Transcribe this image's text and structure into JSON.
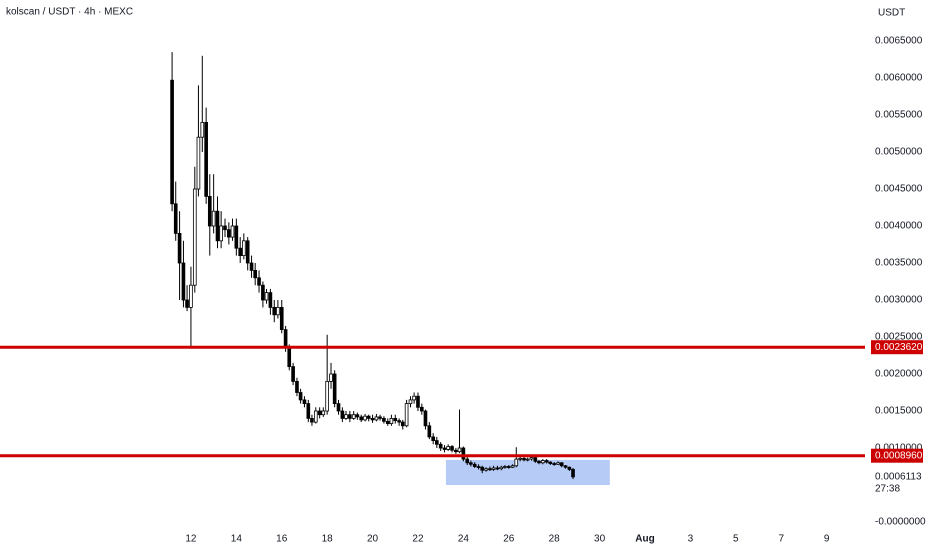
{
  "chart_data": {
    "type": "candlestick",
    "title": "kolscan / USDT · 4h · MEXC",
    "y_axis_label": "USDT",
    "xlim": [
      3.59,
      41.69
    ],
    "ylim": [
      -8.1e-05,
      0.007054
    ],
    "xticks": [
      12,
      14,
      16,
      18,
      20,
      22,
      24,
      26,
      28,
      30,
      {
        "value": 32,
        "label": "Aug"
      },
      {
        "value": 34,
        "label": "3"
      },
      {
        "value": 36,
        "label": "5"
      },
      {
        "value": 38,
        "label": "7"
      },
      {
        "value": 40,
        "label": "9"
      }
    ],
    "yticks": [
      {
        "value": 0.0065,
        "label": "0.0065000"
      },
      {
        "value": 0.006,
        "label": "0.0060000"
      },
      {
        "value": 0.0055,
        "label": "0.0055000"
      },
      {
        "value": 0.005,
        "label": "0.0050000"
      },
      {
        "value": 0.0045,
        "label": "0.0045000"
      },
      {
        "value": 0.004,
        "label": "0.0040000"
      },
      {
        "value": 0.0035,
        "label": "0.0035000"
      },
      {
        "value": 0.003,
        "label": "0.0030000"
      },
      {
        "value": 0.0025,
        "label": "0.0025000"
      },
      {
        "value": 0.002,
        "label": "0.0020000"
      },
      {
        "value": 0.0015,
        "label": "0.0015000"
      },
      {
        "value": 0.001,
        "label": "0.0010000"
      },
      {
        "value": 0,
        "label": "-0.0000000"
      }
    ],
    "grid": false,
    "up_color": "#ffffff",
    "down_color": "#000000",
    "level_color": "#cc0000",
    "levels": [
      {
        "value": 0.002362,
        "label": "0.0023620"
      },
      {
        "value": 0.000896,
        "label": "0.0008960"
      }
    ],
    "zone": {
      "x": [
        23.23,
        30.45
      ],
      "y": [
        0.0005,
        0.00084
      ],
      "color": "#a9c2f5"
    },
    "last_price": {
      "value": 0.0006113,
      "label": "0.0006113",
      "countdown": "27:38"
    },
    "series": [
      {
        "name": "kolscan / USDT",
        "x": [
          11.17,
          11.33,
          11.5,
          11.67,
          11.83,
          12,
          12.17,
          12.33,
          12.5,
          12.67,
          12.83,
          13,
          13.17,
          13.33,
          13.5,
          13.67,
          13.83,
          14,
          14.17,
          14.33,
          14.5,
          14.67,
          14.83,
          15,
          15.17,
          15.33,
          15.5,
          15.67,
          15.83,
          16,
          16.17,
          16.33,
          16.5,
          16.67,
          16.83,
          17,
          17.17,
          17.33,
          17.5,
          17.67,
          17.83,
          18,
          18.17,
          18.33,
          18.5,
          18.67,
          18.83,
          19,
          19.17,
          19.33,
          19.5,
          19.67,
          19.83,
          20,
          20.17,
          20.33,
          20.5,
          20.67,
          20.83,
          21,
          21.17,
          21.33,
          21.5,
          21.67,
          21.83,
          22,
          22.17,
          22.33,
          22.5,
          22.67,
          22.83,
          23,
          23.17,
          23.33,
          23.5,
          23.67,
          23.83,
          24,
          24.17,
          24.33,
          24.5,
          24.67,
          24.83,
          25,
          25.17,
          25.33,
          25.5,
          25.67,
          25.83,
          26,
          26.17,
          26.33,
          26.5,
          26.67,
          26.83,
          27,
          27.17,
          27.33,
          27.5,
          27.67,
          27.83,
          28,
          28.17,
          28.33,
          28.5,
          28.67,
          28.83
        ],
        "open": [
          0.00597,
          0.0043,
          0.0039,
          0.0035,
          0.003,
          0.0029,
          0.0032,
          0.0045,
          0.0052,
          0.0054,
          0.0044,
          0.004,
          0.0042,
          0.0038,
          0.004,
          0.00395,
          0.00385,
          0.004,
          0.0037,
          0.0036,
          0.0038,
          0.0035,
          0.0034,
          0.0033,
          0.0032,
          0.003,
          0.0031,
          0.0029,
          0.0028,
          0.0029,
          0.0026,
          0.00235,
          0.0021,
          0.0019,
          0.00175,
          0.00165,
          0.0016,
          0.0014,
          0.00135,
          0.0015,
          0.00145,
          0.0015,
          0.0019,
          0.002,
          0.0016,
          0.0015,
          0.0014,
          0.00145,
          0.0014,
          0.00145,
          0.00142,
          0.00138,
          0.00143,
          0.0014,
          0.00138,
          0.00142,
          0.0014,
          0.00136,
          0.00133,
          0.0014,
          0.00137,
          0.00135,
          0.0013,
          0.0016,
          0.00165,
          0.0017,
          0.00155,
          0.0015,
          0.0013,
          0.00115,
          0.0011,
          0.00105,
          0.001,
          0.00098,
          0.00102,
          0.00097,
          0.00095,
          0.001,
          0.00085,
          0.0008,
          0.00078,
          0.00075,
          0.00074,
          0.0007,
          0.00072,
          0.00071,
          0.00073,
          0.00072,
          0.00074,
          0.00075,
          0.00074,
          0.00076,
          0.00085,
          0.00086,
          0.00084,
          0.00085,
          0.00087,
          0.00082,
          0.0008,
          0.00083,
          0.00081,
          0.00079,
          0.00078,
          0.0008,
          0.00076,
          0.00074,
          0.00071
        ],
        "high": [
          0.00635,
          0.0046,
          0.0042,
          0.0038,
          0.0032,
          0.00345,
          0.0048,
          0.0059,
          0.0063,
          0.0056,
          0.0047,
          0.0047,
          0.0044,
          0.0042,
          0.0041,
          0.00405,
          0.0041,
          0.0041,
          0.00385,
          0.0039,
          0.00385,
          0.0036,
          0.0035,
          0.0034,
          0.00325,
          0.00315,
          0.00315,
          0.003,
          0.003,
          0.003,
          0.00265,
          0.0024,
          0.00215,
          0.00195,
          0.0018,
          0.0017,
          0.00165,
          0.00145,
          0.00155,
          0.00155,
          0.00155,
          0.00253,
          0.00215,
          0.00205,
          0.00165,
          0.00155,
          0.0015,
          0.0015,
          0.0015,
          0.00148,
          0.00145,
          0.00146,
          0.00145,
          0.00145,
          0.00146,
          0.00145,
          0.00143,
          0.0014,
          0.00145,
          0.00145,
          0.0014,
          0.00138,
          0.00165,
          0.0017,
          0.00175,
          0.00175,
          0.0016,
          0.00152,
          0.00135,
          0.0012,
          0.00115,
          0.00108,
          0.00104,
          0.00105,
          0.00104,
          0.001,
          0.00152,
          0.00102,
          0.00088,
          0.00083,
          0.00081,
          0.00078,
          0.00076,
          0.00074,
          0.00075,
          0.00076,
          0.00076,
          0.00076,
          0.00077,
          0.00077,
          0.00078,
          0.00101,
          0.0009,
          0.00088,
          0.00087,
          0.00089,
          0.00089,
          0.00084,
          0.00085,
          0.00085,
          0.00082,
          0.00081,
          0.00082,
          0.00081,
          0.00077,
          0.00075,
          0.00073
        ],
        "low": [
          0.0042,
          0.0038,
          0.003,
          0.0029,
          0.00285,
          0.00235,
          0.0031,
          0.0044,
          0.005,
          0.0043,
          0.0036,
          0.0039,
          0.0037,
          0.0037,
          0.00385,
          0.00375,
          0.0038,
          0.0036,
          0.0035,
          0.00355,
          0.0034,
          0.0033,
          0.0032,
          0.0031,
          0.0029,
          0.00295,
          0.0028,
          0.0027,
          0.00275,
          0.00255,
          0.0023,
          0.00205,
          0.00185,
          0.0017,
          0.0016,
          0.00155,
          0.00135,
          0.0013,
          0.00133,
          0.0014,
          0.00142,
          0.00145,
          0.0018,
          0.00155,
          0.00145,
          0.00135,
          0.00138,
          0.00135,
          0.00138,
          0.00138,
          0.00135,
          0.00136,
          0.00136,
          0.00134,
          0.00136,
          0.00137,
          0.00133,
          0.0013,
          0.0013,
          0.00133,
          0.0013,
          0.00125,
          0.00128,
          0.00155,
          0.0016,
          0.0015,
          0.00145,
          0.00125,
          0.00112,
          0.00105,
          0.001,
          0.00096,
          0.00094,
          0.00096,
          0.00094,
          0.00092,
          0.00093,
          0.00082,
          0.00077,
          0.00075,
          0.00073,
          0.00071,
          0.00066,
          0.00068,
          0.00069,
          0.00069,
          0.0007,
          0.0007,
          0.00072,
          0.00072,
          0.00073,
          0.00074,
          0.00082,
          0.00082,
          0.00082,
          0.00083,
          0.0008,
          0.00078,
          0.00078,
          0.00079,
          0.00077,
          0.00076,
          0.00077,
          0.00074,
          0.00072,
          0.00069,
          0.00058
        ],
        "close": [
          0.0043,
          0.0039,
          0.0035,
          0.003,
          0.0029,
          0.0032,
          0.0045,
          0.0052,
          0.0054,
          0.0044,
          0.004,
          0.0042,
          0.0038,
          0.004,
          0.00395,
          0.00385,
          0.004,
          0.0037,
          0.0036,
          0.0038,
          0.0035,
          0.0034,
          0.0033,
          0.0032,
          0.003,
          0.0031,
          0.0029,
          0.0028,
          0.0029,
          0.0026,
          0.00235,
          0.0021,
          0.0019,
          0.00175,
          0.00165,
          0.0016,
          0.0014,
          0.00135,
          0.0015,
          0.00145,
          0.0015,
          0.0019,
          0.002,
          0.0016,
          0.0015,
          0.0014,
          0.00145,
          0.0014,
          0.00145,
          0.00142,
          0.00138,
          0.00143,
          0.0014,
          0.00138,
          0.00142,
          0.0014,
          0.00136,
          0.00133,
          0.0014,
          0.00137,
          0.00135,
          0.0013,
          0.0016,
          0.00165,
          0.0017,
          0.00155,
          0.0015,
          0.0013,
          0.00115,
          0.0011,
          0.00105,
          0.001,
          0.00098,
          0.00102,
          0.00097,
          0.00095,
          0.001,
          0.00085,
          0.0008,
          0.00078,
          0.00075,
          0.00074,
          0.0007,
          0.00072,
          0.00071,
          0.00073,
          0.00072,
          0.00074,
          0.00075,
          0.00074,
          0.00076,
          0.00085,
          0.00086,
          0.00084,
          0.00085,
          0.00087,
          0.00082,
          0.0008,
          0.00083,
          0.00081,
          0.00079,
          0.00078,
          0.0008,
          0.00076,
          0.00074,
          0.00071,
          0.00061
        ]
      }
    ]
  }
}
